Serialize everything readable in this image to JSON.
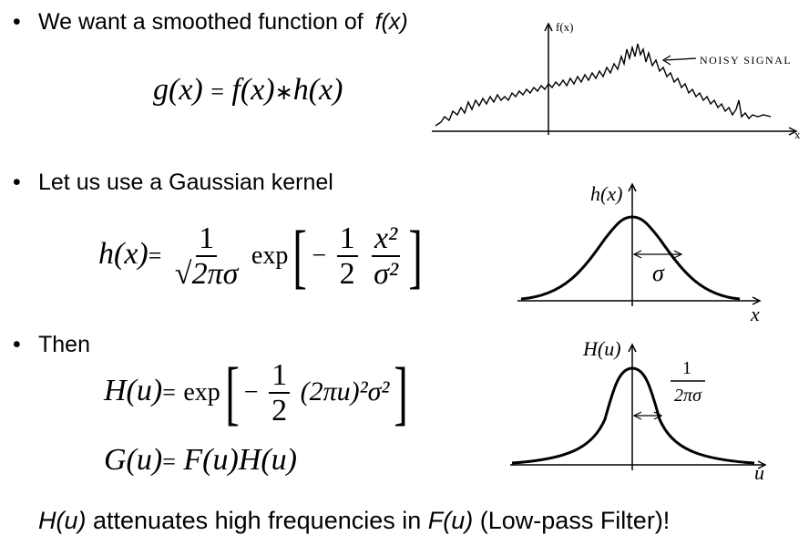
{
  "bullets": {
    "b1": "We want a smoothed function of",
    "b1_tail": "f(x)",
    "b2": "Let us use a Gaussian kernel",
    "b3": "Then"
  },
  "equations": {
    "g_def": {
      "lhs": "g(x)",
      "eq": "=",
      "a": "f(x)",
      "op": "∗",
      "b": "h(x)"
    },
    "h_def": {
      "lhs": "h(x)",
      "eq": "=",
      "num": "1",
      "den": "√2πσ",
      "exp": "exp",
      "minus": "−",
      "half_num": "1",
      "half_den": "2",
      "x2": "x²",
      "s2": "σ²"
    },
    "H_def": {
      "lhs": "H(u)",
      "eq": "=",
      "exp": "exp",
      "minus": "−",
      "half_num": "1",
      "half_den": "2",
      "body": "(2πu)²σ²"
    },
    "G_def": {
      "lhs": "G(u)",
      "eq": "=",
      "rhs": "F(u)H(u)"
    }
  },
  "plots": {
    "noisy": {
      "y_label": "f(x)",
      "x_label": "x",
      "annotation": "NOISY SIGNAL"
    },
    "gauss": {
      "y_label": "h(x)",
      "x_label": "x",
      "width_label": "σ"
    },
    "freq": {
      "y_label": "H(u)",
      "x_label": "u",
      "width_num": "1",
      "width_den": "2πσ"
    }
  },
  "conclusion": {
    "a": "H(u)",
    "b": " attenuates high frequencies in ",
    "c": "F(u)",
    "d": " (Low-pass Filter)!"
  }
}
